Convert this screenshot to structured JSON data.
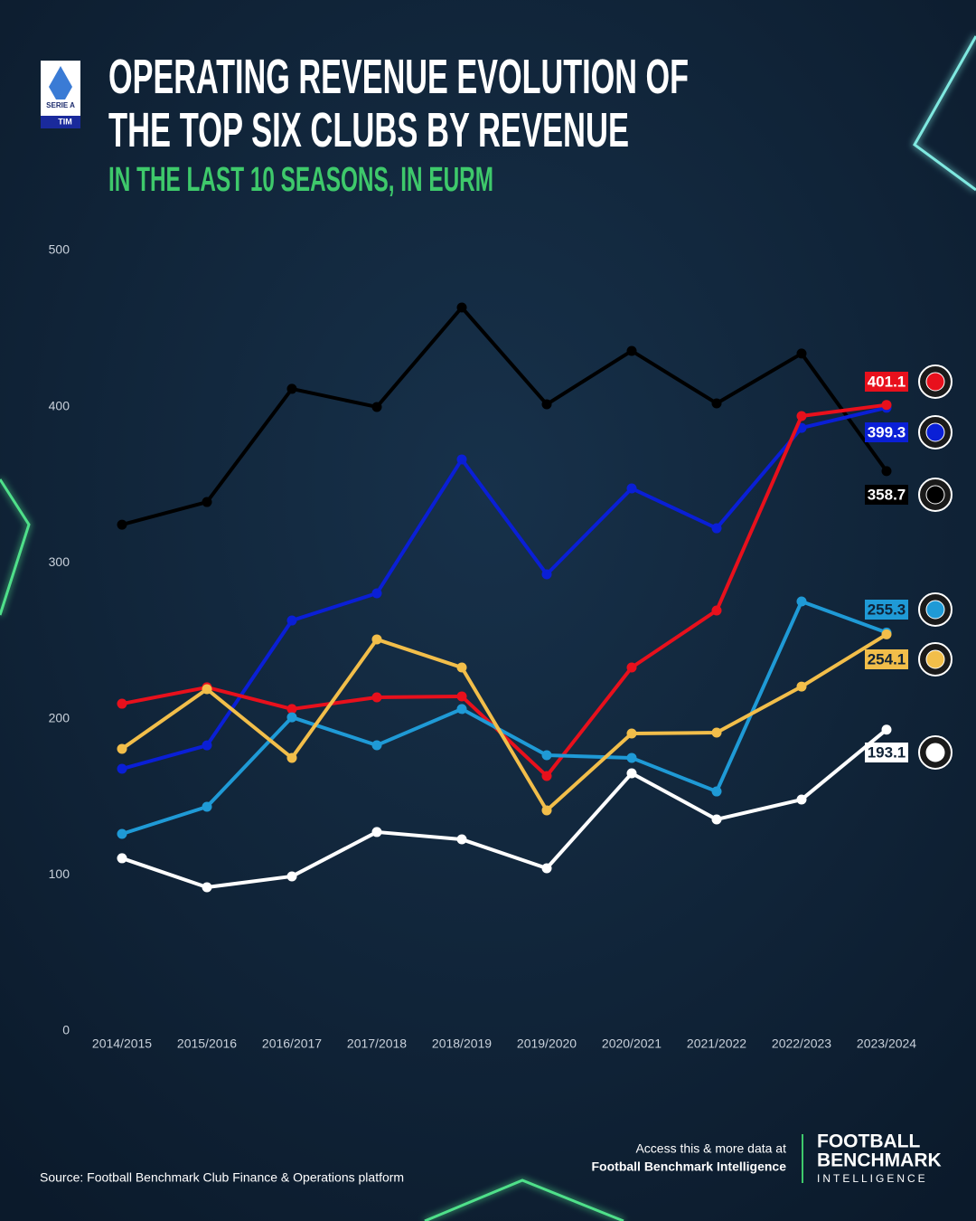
{
  "chart_data": {
    "type": "line",
    "title": [
      "OPERATING REVENUE EVOLUTION OF",
      "THE TOP SIX CLUBS BY REVENUE"
    ],
    "subtitle": "IN THE LAST 10 SEASONS, IN EURM",
    "categories": [
      "2014/2015",
      "2015/2016",
      "2016/2017",
      "2017/2018",
      "2018/2019",
      "2019/2020",
      "2020/2021",
      "2021/2022",
      "2022/2023",
      "2023/2024"
    ],
    "series": [
      {
        "color": "#000000",
        "values": [
          324.4,
          338.9,
          411.4,
          399.8,
          463.5,
          401.5,
          435.7,
          402.1,
          434.0,
          358.7
        ]
      },
      {
        "color": "#0a1fd6",
        "values": [
          168.0,
          183.0,
          263.0,
          280.4,
          366.2,
          292.6,
          347.6,
          322.1,
          386.4,
          399.3
        ]
      },
      {
        "color": "#e8101c",
        "values": [
          209.7,
          220.2,
          206.3,
          213.8,
          214.4,
          163.4,
          232.9,
          269.4,
          394.0,
          401.1
        ]
      },
      {
        "color": "#1f9ad6",
        "values": [
          126.3,
          143.7,
          201.0,
          183.1,
          206.3,
          176.7,
          175.0,
          153.5,
          275.2,
          255.3
        ]
      },
      {
        "color": "#f2be4a",
        "values": [
          180.8,
          219.0,
          175.0,
          250.9,
          232.9,
          141.4,
          190.6,
          191.2,
          220.7,
          254.1
        ]
      },
      {
        "color": "#ffffff",
        "values": [
          110.7,
          92.1,
          99.1,
          127.5,
          122.8,
          104.3,
          165.1,
          135.6,
          148.3,
          193.1
        ]
      }
    ],
    "ylim": [
      0,
      500
    ],
    "yticks": [
      0,
      100,
      200,
      300,
      400,
      500
    ],
    "grid": false
  },
  "league_badge": [
    "SERIE A",
    "TIM"
  ],
  "footer": {
    "source": "Source: Football Benchmark Club Finance & Operations platform",
    "cta": [
      "Access this & more data at",
      "Football Benchmark Intelligence"
    ],
    "brand": [
      "FOOTBALL",
      "BENCHMARK",
      "INTELLIGENCE"
    ]
  }
}
